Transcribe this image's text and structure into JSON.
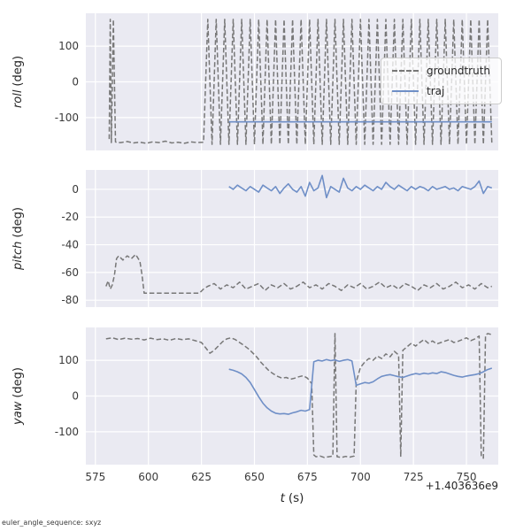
{
  "figure": {
    "footer_note": "euler_angle_sequence: sxyz",
    "x_offset_text": "+1.403636e9",
    "xlabel_var": "t",
    "xlabel_unit": "(s)",
    "background": "#ffffff",
    "axes_background": "#eaeaf2",
    "grid_color": "#ffffff",
    "tick_color": "#3a3a3a"
  },
  "legend": {
    "position": "center right of roll subplot",
    "entries": [
      {
        "label": "groundtruth",
        "color": "#777777",
        "dash": true
      },
      {
        "label": "traj",
        "color": "#6f8fc7",
        "dash": false
      }
    ]
  },
  "chart_data": [
    {
      "name": "roll",
      "type": "line",
      "ylabel_var": "roll",
      "ylabel_unit": "(deg)",
      "xlim": [
        570.5,
        765
      ],
      "ylim": [
        -192,
        192
      ],
      "yticks": [
        -100,
        0,
        100
      ],
      "xticks": [
        575,
        600,
        625,
        650,
        675,
        700,
        725,
        750
      ],
      "grid": true,
      "series": [
        {
          "name": "groundtruth",
          "color": "#777777",
          "dash": true,
          "x": [
            581.5,
            582,
            582.5,
            583.5,
            584.5,
            585,
            587,
            590,
            593,
            596,
            599,
            602,
            605,
            608,
            611,
            614,
            617,
            620,
            623,
            626,
            628,
            630,
            632,
            634,
            636,
            638,
            640,
            642,
            644,
            646,
            648,
            650,
            652,
            654,
            656,
            658,
            660,
            662,
            664,
            666,
            668,
            670,
            672,
            674,
            676,
            678,
            680,
            682,
            684,
            686,
            688,
            690,
            692,
            694,
            696,
            698,
            700,
            702,
            704,
            706,
            708,
            710,
            712,
            714,
            716,
            718,
            720,
            722,
            724,
            726,
            728,
            730,
            732,
            734,
            736,
            738,
            740,
            742,
            744,
            746,
            748,
            750,
            752,
            754,
            756,
            758,
            760,
            762
          ],
          "y": [
            -160,
            175,
            -170,
            175,
            -168,
            -170,
            -170,
            -167,
            -171,
            -169,
            -172,
            -168,
            -170,
            -166,
            -171,
            -169,
            -172,
            -168,
            -170,
            -169,
            175,
            -175,
            175,
            -175,
            175,
            -175,
            175,
            -175,
            175,
            -175,
            175,
            -175,
            175,
            -175,
            175,
            -175,
            175,
            -175,
            175,
            -175,
            175,
            -175,
            175,
            -175,
            175,
            -175,
            175,
            -175,
            175,
            -175,
            175,
            -175,
            175,
            -175,
            175,
            -175,
            175,
            -175,
            175,
            -175,
            175,
            -175,
            175,
            -175,
            175,
            -175,
            175,
            -175,
            175,
            -175,
            175,
            -175,
            175,
            -175,
            175,
            -175,
            175,
            -175,
            175,
            -175,
            175,
            -175,
            175,
            -175,
            175,
            -175,
            175,
            -175
          ]
        },
        {
          "name": "traj",
          "color": "#6f8fc7",
          "dash": false,
          "x": [
            638,
            660,
            680,
            700,
            720,
            740,
            762
          ],
          "y": [
            -112,
            -112,
            -112,
            -112,
            -112,
            -112,
            -112
          ]
        }
      ]
    },
    {
      "name": "pitch",
      "type": "line",
      "ylabel_var": "pitch",
      "ylabel_unit": "(deg)",
      "xlim": [
        570.5,
        765
      ],
      "ylim": [
        -85,
        14
      ],
      "yticks": [
        -80,
        -60,
        -40,
        -20,
        0
      ],
      "xticks": [
        575,
        600,
        625,
        650,
        675,
        700,
        725,
        750
      ],
      "grid": true,
      "series": [
        {
          "name": "groundtruth",
          "color": "#777777",
          "dash": true,
          "x": [
            580,
            581,
            582,
            583,
            584,
            585,
            586,
            588,
            590,
            592,
            594,
            596,
            597,
            598,
            600,
            604,
            608,
            612,
            616,
            620,
            624,
            626,
            628,
            631,
            634,
            637,
            640,
            643,
            646,
            649,
            652,
            655,
            658,
            661,
            664,
            667,
            670,
            673,
            676,
            679,
            682,
            685,
            688,
            691,
            694,
            697,
            700,
            703,
            706,
            709,
            712,
            715,
            718,
            721,
            724,
            727,
            730,
            733,
            736,
            739,
            742,
            745,
            748,
            751,
            754,
            757,
            760,
            762
          ],
          "y": [
            -70,
            -66,
            -72,
            -69,
            -62,
            -50,
            -48,
            -51,
            -48,
            -50,
            -47,
            -52,
            -62,
            -75,
            -75,
            -75,
            -75,
            -75,
            -75,
            -75,
            -75,
            -72,
            -70,
            -68,
            -72,
            -69,
            -71,
            -67,
            -72,
            -70,
            -68,
            -73,
            -69,
            -71,
            -68,
            -72,
            -70,
            -67,
            -71,
            -69,
            -72,
            -68,
            -70,
            -73,
            -69,
            -71,
            -68,
            -72,
            -70,
            -67,
            -71,
            -69,
            -72,
            -68,
            -70,
            -73,
            -69,
            -71,
            -68,
            -72,
            -70,
            -67,
            -71,
            -69,
            -72,
            -68,
            -71,
            -70
          ]
        },
        {
          "name": "traj",
          "color": "#6f8fc7",
          "dash": false,
          "x": [
            638,
            640,
            642,
            644,
            646,
            648,
            650,
            652,
            654,
            656,
            658,
            660,
            662,
            664,
            666,
            668,
            670,
            672,
            674,
            676,
            678,
            680,
            682,
            684,
            686,
            688,
            690,
            692,
            694,
            696,
            698,
            700,
            702,
            704,
            706,
            708,
            710,
            712,
            714,
            716,
            718,
            720,
            722,
            724,
            726,
            728,
            730,
            732,
            734,
            736,
            738,
            740,
            742,
            744,
            746,
            748,
            750,
            752,
            754,
            756,
            758,
            760,
            762
          ],
          "y": [
            2,
            0,
            3,
            1,
            -1,
            2,
            0,
            -2,
            3,
            1,
            -1,
            2,
            -3,
            1,
            4,
            0,
            -2,
            2,
            -5,
            5,
            -1,
            1,
            10,
            -6,
            2,
            0,
            -2,
            8,
            1,
            -1,
            2,
            0,
            3,
            1,
            -1,
            2,
            0,
            5,
            2,
            0,
            3,
            1,
            -1,
            2,
            0,
            2,
            1,
            -1,
            2,
            0,
            1,
            2,
            0,
            1,
            -1,
            2,
            1,
            0,
            2,
            6,
            -3,
            2,
            1
          ]
        }
      ]
    },
    {
      "name": "yaw",
      "type": "line",
      "ylabel_var": "yaw",
      "ylabel_unit": "(deg)",
      "xlim": [
        570.5,
        765
      ],
      "ylim": [
        -192,
        192
      ],
      "yticks": [
        -100,
        0,
        100
      ],
      "xticks": [
        575,
        600,
        625,
        650,
        675,
        700,
        725,
        750
      ],
      "grid": true,
      "series": [
        {
          "name": "groundtruth",
          "color": "#777777",
          "dash": true,
          "x": [
            580,
            583,
            586,
            589,
            592,
            595,
            598,
            601,
            604,
            607,
            610,
            613,
            616,
            619,
            622,
            625,
            627,
            629,
            631,
            633,
            635,
            637,
            639,
            641,
            643,
            645,
            647,
            649,
            651,
            653,
            655,
            657,
            659,
            661,
            663,
            665,
            667,
            669,
            671,
            673,
            675,
            677,
            678,
            679,
            681,
            683,
            685,
            687,
            688,
            689,
            691,
            693,
            695,
            697,
            698,
            700,
            702,
            704,
            706,
            708,
            710,
            712,
            714,
            716,
            718,
            719,
            720,
            722,
            724,
            726,
            728,
            730,
            732,
            734,
            736,
            738,
            740,
            742,
            744,
            746,
            748,
            750,
            752,
            754,
            756,
            757,
            758,
            759,
            760,
            762
          ],
          "y": [
            160,
            163,
            158,
            162,
            159,
            161,
            157,
            162,
            158,
            160,
            156,
            161,
            158,
            160,
            155,
            150,
            135,
            120,
            128,
            140,
            152,
            160,
            163,
            158,
            150,
            142,
            133,
            122,
            110,
            95,
            82,
            70,
            62,
            55,
            50,
            52,
            47,
            50,
            54,
            57,
            50,
            35,
            -165,
            -170,
            -168,
            -172,
            -170,
            -168,
            175,
            -170,
            -172,
            -169,
            -171,
            -168,
            40,
            80,
            95,
            105,
            100,
            112,
            105,
            118,
            110,
            125,
            115,
            -170,
            128,
            138,
            148,
            140,
            150,
            158,
            148,
            154,
            146,
            150,
            154,
            158,
            150,
            153,
            158,
            163,
            155,
            160,
            168,
            -170,
            -174,
            170,
            175,
            172
          ]
        },
        {
          "name": "traj",
          "color": "#6f8fc7",
          "dash": false,
          "x": [
            638,
            640,
            642,
            644,
            646,
            648,
            650,
            652,
            654,
            656,
            658,
            660,
            662,
            664,
            666,
            668,
            670,
            672,
            674,
            676,
            678,
            680,
            682,
            684,
            686,
            688,
            690,
            692,
            694,
            696,
            698,
            700,
            702,
            704,
            706,
            708,
            710,
            712,
            714,
            716,
            718,
            720,
            722,
            724,
            726,
            728,
            730,
            732,
            734,
            736,
            738,
            740,
            742,
            744,
            746,
            748,
            750,
            752,
            754,
            756,
            758,
            760,
            762
          ],
          "y": [
            75,
            72,
            68,
            62,
            52,
            38,
            18,
            -2,
            -20,
            -33,
            -42,
            -48,
            -50,
            -49,
            -51,
            -47,
            -44,
            -40,
            -42,
            -38,
            96,
            100,
            98,
            102,
            99,
            101,
            97,
            100,
            102,
            98,
            30,
            34,
            38,
            36,
            40,
            48,
            55,
            58,
            60,
            57,
            54,
            52,
            56,
            60,
            63,
            61,
            64,
            62,
            65,
            63,
            68,
            66,
            62,
            58,
            55,
            53,
            56,
            58,
            60,
            63,
            68,
            74,
            78
          ]
        }
      ]
    }
  ]
}
